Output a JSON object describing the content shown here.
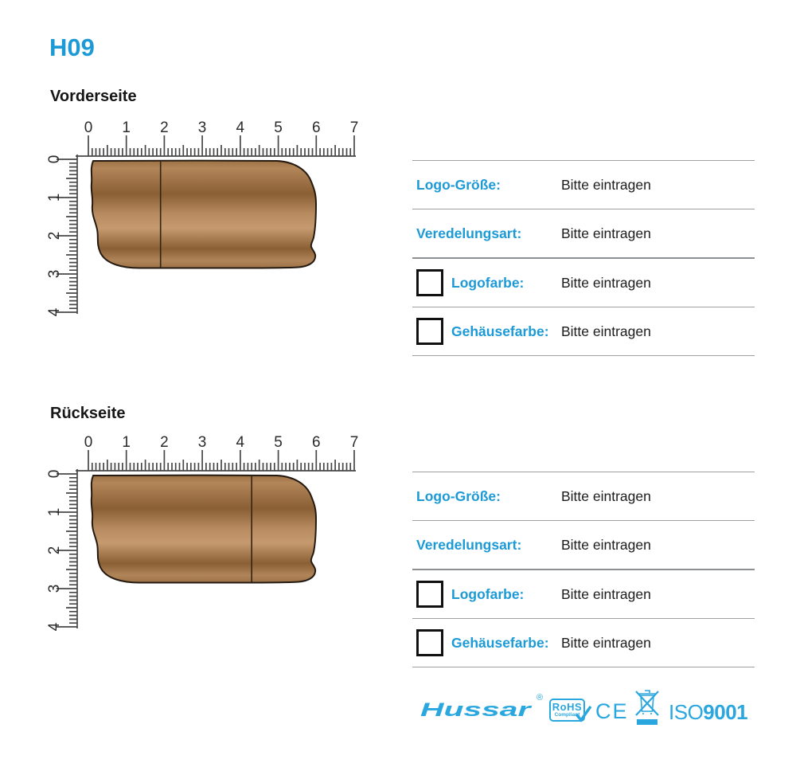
{
  "page": {
    "title": "H09",
    "accent_color": "#1c9ad6",
    "footer_color": "#2aa7de"
  },
  "sections": [
    {
      "title": "Vorderseite",
      "ruler": {
        "h_labels": [
          "0",
          "1",
          "2",
          "3",
          "4",
          "5",
          "6",
          "7"
        ],
        "v_labels": [
          "0",
          "1",
          "2",
          "3",
          "4"
        ]
      },
      "product": {
        "illustration": "wooden-usb-stick",
        "seam_cm": 1.9,
        "wood_colors": [
          "#9c7245",
          "#b28659",
          "#8a5f34",
          "#c59a6e"
        ]
      },
      "form": {
        "rows": [
          {
            "label": "Logo-Größe:",
            "value": "Bitte eintragen",
            "checkbox": false
          },
          {
            "label": "Veredelungsart:",
            "value": "Bitte eintragen",
            "checkbox": false
          },
          {
            "label": "Logofarbe:",
            "value": "Bitte eintragen",
            "checkbox": true
          },
          {
            "label": "Gehäusefarbe:",
            "value": "Bitte eintragen",
            "checkbox": true
          }
        ]
      }
    },
    {
      "title": "Rückseite",
      "ruler": {
        "h_labels": [
          "0",
          "1",
          "2",
          "3",
          "4",
          "5",
          "6",
          "7"
        ],
        "v_labels": [
          "0",
          "1",
          "2",
          "3",
          "4"
        ]
      },
      "product": {
        "illustration": "wooden-usb-stick",
        "seam_cm": 4.3,
        "wood_colors": [
          "#9c7245",
          "#b28659",
          "#8a5f34",
          "#c59a6e"
        ]
      },
      "form": {
        "rows": [
          {
            "label": "Logo-Größe:",
            "value": "Bitte eintragen",
            "checkbox": false
          },
          {
            "label": "Veredelungsart:",
            "value": "Bitte eintragen",
            "checkbox": false
          },
          {
            "label": "Logofarbe:",
            "value": "Bitte eintragen",
            "checkbox": true
          },
          {
            "label": "Gehäusefarbe:",
            "value": "Bitte eintragen",
            "checkbox": true
          }
        ]
      }
    }
  ],
  "footer": {
    "brand": "Hussar",
    "brand_reg": "®",
    "rohs": {
      "line1": "RoHS",
      "line2": "Compliant"
    },
    "ce": "CE",
    "weee_icon": "weee-crossed-out-bin-icon",
    "iso_prefix": "ISO",
    "iso_number": "9001"
  }
}
